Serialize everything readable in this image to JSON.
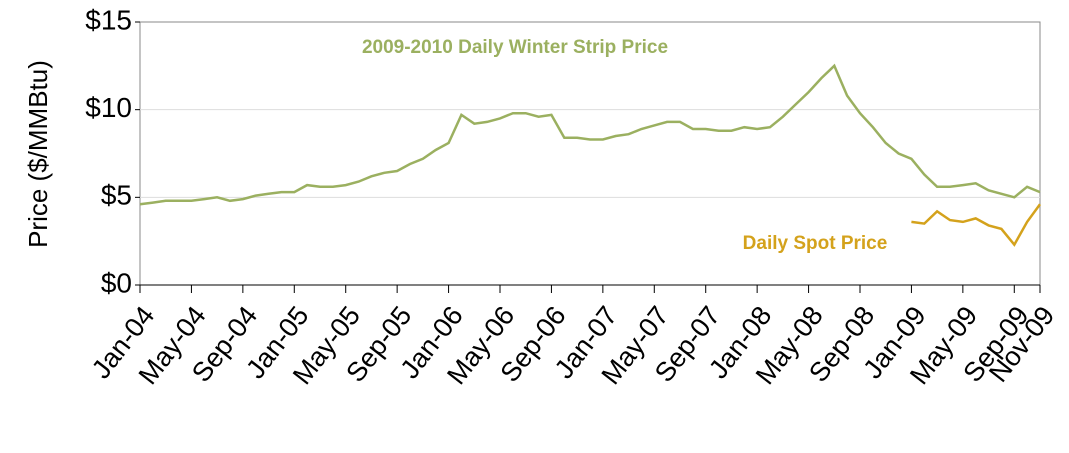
{
  "chart_data": {
    "type": "line",
    "y_label": "Price ($/MMBtu)",
    "x": [
      "2004-01",
      "2004-02",
      "2004-03",
      "2004-04",
      "2004-05",
      "2004-06",
      "2004-07",
      "2004-08",
      "2004-09",
      "2004-10",
      "2004-11",
      "2004-12",
      "2005-01",
      "2005-02",
      "2005-03",
      "2005-04",
      "2005-05",
      "2005-06",
      "2005-07",
      "2005-08",
      "2005-09",
      "2005-10",
      "2005-11",
      "2005-12",
      "2006-01",
      "2006-02",
      "2006-03",
      "2006-04",
      "2006-05",
      "2006-06",
      "2006-07",
      "2006-08",
      "2006-09",
      "2006-10",
      "2006-11",
      "2006-12",
      "2007-01",
      "2007-02",
      "2007-03",
      "2007-04",
      "2007-05",
      "2007-06",
      "2007-07",
      "2007-08",
      "2007-09",
      "2007-10",
      "2007-11",
      "2007-12",
      "2008-01",
      "2008-02",
      "2008-03",
      "2008-04",
      "2008-05",
      "2008-06",
      "2008-07",
      "2008-08",
      "2008-09",
      "2008-10",
      "2008-11",
      "2008-12",
      "2009-01",
      "2009-02",
      "2009-03",
      "2009-04",
      "2009-05",
      "2009-06",
      "2009-07",
      "2009-08",
      "2009-09",
      "2009-10",
      "2009-11"
    ],
    "series": [
      {
        "name": "2009-2010 Daily Winter Strip Price",
        "color": "#9bb060",
        "values": [
          4.6,
          4.7,
          4.8,
          4.8,
          4.8,
          4.9,
          5.0,
          4.8,
          4.9,
          5.1,
          5.2,
          5.3,
          5.3,
          5.7,
          5.6,
          5.6,
          5.7,
          5.9,
          6.2,
          6.4,
          6.5,
          6.9,
          7.2,
          7.7,
          8.1,
          9.7,
          9.2,
          9.3,
          9.5,
          9.8,
          9.8,
          9.6,
          9.7,
          8.4,
          8.4,
          8.3,
          8.3,
          8.5,
          8.6,
          8.9,
          9.1,
          9.3,
          9.3,
          8.9,
          8.9,
          8.8,
          8.8,
          9.0,
          8.9,
          9.0,
          9.6,
          10.3,
          11.0,
          11.8,
          12.5,
          10.8,
          9.8,
          9.0,
          8.1,
          7.5,
          7.2,
          6.3,
          5.6,
          5.6,
          5.7,
          5.8,
          5.4,
          5.2,
          5.0,
          5.6,
          5.3
        ]
      },
      {
        "name": "Daily Spot Price",
        "color": "#d4a21c",
        "values": [
          null,
          null,
          null,
          null,
          null,
          null,
          null,
          null,
          null,
          null,
          null,
          null,
          null,
          null,
          null,
          null,
          null,
          null,
          null,
          null,
          null,
          null,
          null,
          null,
          null,
          null,
          null,
          null,
          null,
          null,
          null,
          null,
          null,
          null,
          null,
          null,
          null,
          null,
          null,
          null,
          null,
          null,
          null,
          null,
          null,
          null,
          null,
          null,
          null,
          null,
          null,
          null,
          null,
          null,
          null,
          null,
          null,
          null,
          null,
          null,
          3.6,
          3.5,
          4.2,
          3.7,
          3.6,
          3.8,
          3.4,
          3.2,
          2.3,
          3.6,
          4.6
        ]
      }
    ],
    "xlim": [
      "2004-01",
      "2009-11"
    ],
    "xticks": [
      {
        "value": "2004-01",
        "label": "Jan-04"
      },
      {
        "value": "2004-05",
        "label": "May-04"
      },
      {
        "value": "2004-09",
        "label": "Sep-04"
      },
      {
        "value": "2005-01",
        "label": "Jan-05"
      },
      {
        "value": "2005-05",
        "label": "May-05"
      },
      {
        "value": "2005-09",
        "label": "Sep-05"
      },
      {
        "value": "2006-01",
        "label": "Jan-06"
      },
      {
        "value": "2006-05",
        "label": "May-06"
      },
      {
        "value": "2006-09",
        "label": "Sep-06"
      },
      {
        "value": "2007-01",
        "label": "Jan-07"
      },
      {
        "value": "2007-05",
        "label": "May-07"
      },
      {
        "value": "2007-09",
        "label": "Sep-07"
      },
      {
        "value": "2008-01",
        "label": "Jan-08"
      },
      {
        "value": "2008-05",
        "label": "May-08"
      },
      {
        "value": "2008-09",
        "label": "Sep-08"
      },
      {
        "value": "2009-01",
        "label": "Jan-09"
      },
      {
        "value": "2009-05",
        "label": "May-09"
      },
      {
        "value": "2009-09",
        "label": "Sep-09"
      },
      {
        "value": "2009-11",
        "label": "Nov-09"
      }
    ],
    "ylim": [
      0,
      15
    ],
    "yticks": [
      {
        "value": 0,
        "label": "$0"
      },
      {
        "value": 5,
        "label": "$5"
      },
      {
        "value": 10,
        "label": "$10"
      },
      {
        "value": 15,
        "label": "$15"
      }
    ],
    "grid": true
  }
}
